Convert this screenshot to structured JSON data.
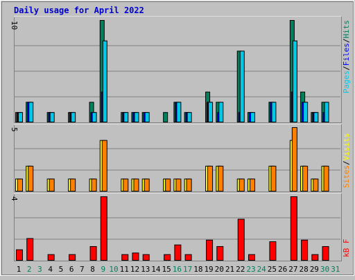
{
  "title": "Daily usage for April 2022",
  "colors": {
    "background": "#c0c0c0",
    "title": "#0000cc",
    "grid": "#808080",
    "hits": "#00805c",
    "files": "#0000ff",
    "pages": "#00c8e8",
    "visits": "#ffff00",
    "sites": "#ff8000",
    "kbytes": "#ff0000",
    "weekend_day": "#00805c",
    "weekday": "#000000",
    "slash": "#000000"
  },
  "chart_data": [
    {
      "type": "bar",
      "panel": "hits-files-pages",
      "legend": [
        "Pages",
        "Files",
        "Hits"
      ],
      "ylim": [
        0,
        10
      ],
      "y_tick_label": "10",
      "categories": [
        "1",
        "2",
        "3",
        "4",
        "5",
        "6",
        "7",
        "8",
        "9",
        "10",
        "11",
        "12",
        "13",
        "14",
        "15",
        "16",
        "17",
        "18",
        "19",
        "20",
        "21",
        "22",
        "23",
        "24",
        "25",
        "26",
        "27",
        "28",
        "29",
        "30",
        "31"
      ],
      "series": [
        {
          "name": "Hits",
          "values": [
            1,
            2,
            0,
            1,
            0,
            1,
            0,
            2,
            10,
            0,
            1,
            1,
            1,
            0,
            1,
            2,
            1,
            0,
            3,
            2,
            0,
            7,
            1,
            0,
            2,
            0,
            10,
            3,
            1,
            2,
            0
          ]
        },
        {
          "name": "Files",
          "values": [
            1,
            2,
            0,
            1,
            0,
            1,
            0,
            1,
            3,
            0,
            1,
            1,
            1,
            0,
            0,
            2,
            1,
            0,
            2,
            1,
            0,
            1,
            1,
            0,
            2,
            0,
            3,
            2,
            1,
            1,
            0
          ]
        },
        {
          "name": "Pages",
          "values": [
            1,
            2,
            0,
            1,
            0,
            1,
            0,
            1,
            8,
            0,
            1,
            1,
            1,
            0,
            0,
            2,
            1,
            0,
            2,
            2,
            0,
            7,
            1,
            0,
            2,
            0,
            8,
            2,
            1,
            2,
            0
          ]
        }
      ]
    },
    {
      "type": "bar",
      "panel": "visits-sites",
      "legend": [
        "Sites",
        "Visits"
      ],
      "ylim": [
        0,
        5
      ],
      "y_tick_label": "5",
      "categories": [
        "1",
        "2",
        "3",
        "4",
        "5",
        "6",
        "7",
        "8",
        "9",
        "10",
        "11",
        "12",
        "13",
        "14",
        "15",
        "16",
        "17",
        "18",
        "19",
        "20",
        "21",
        "22",
        "23",
        "24",
        "25",
        "26",
        "27",
        "28",
        "29",
        "30",
        "31"
      ],
      "series": [
        {
          "name": "Visits",
          "values": [
            1,
            2,
            0,
            1,
            0,
            1,
            0,
            1,
            4,
            0,
            1,
            1,
            1,
            0,
            1,
            1,
            1,
            0,
            2,
            2,
            0,
            1,
            1,
            0,
            2,
            0,
            4,
            2,
            1,
            2,
            0
          ]
        },
        {
          "name": "Sites",
          "values": [
            1,
            2,
            0,
            1,
            0,
            1,
            0,
            1,
            4,
            0,
            1,
            1,
            1,
            0,
            1,
            1,
            1,
            0,
            2,
            2,
            0,
            1,
            1,
            0,
            2,
            0,
            5,
            2,
            1,
            2,
            0
          ]
        }
      ]
    },
    {
      "type": "bar",
      "panel": "kbytes",
      "legend": [
        "kB F"
      ],
      "ylim": [
        0,
        4
      ],
      "y_tick_label": "4",
      "categories": [
        "1",
        "2",
        "3",
        "4",
        "5",
        "6",
        "7",
        "8",
        "9",
        "10",
        "11",
        "12",
        "13",
        "14",
        "15",
        "16",
        "17",
        "18",
        "19",
        "20",
        "21",
        "22",
        "23",
        "24",
        "25",
        "26",
        "27",
        "28",
        "29",
        "30",
        "31"
      ],
      "series": [
        {
          "name": "kB F",
          "values": [
            0.7,
            1.4,
            0,
            0.4,
            0,
            0.4,
            0,
            0.9,
            4.0,
            0,
            0.4,
            0.5,
            0.4,
            0,
            0.4,
            1.0,
            0.4,
            0,
            1.3,
            0.9,
            0,
            2.6,
            0.4,
            0,
            1.2,
            0,
            4.0,
            1.3,
            0.4,
            0.9,
            0
          ]
        }
      ]
    }
  ],
  "weekend_days": [
    2,
    3,
    9,
    10,
    16,
    17,
    23,
    24,
    30,
    31
  ]
}
